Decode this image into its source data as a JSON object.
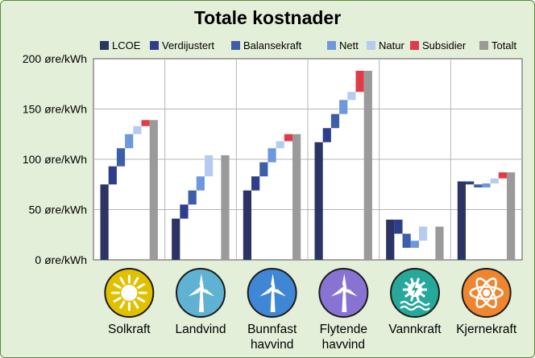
{
  "chart_data": {
    "type": "bar",
    "title": "Totale kostnader",
    "ylim": [
      0,
      200
    ],
    "y_ticks": [
      0,
      50,
      100,
      150,
      200
    ],
    "y_unit": "øre/kWh",
    "grid": true,
    "legend_position": "top-right",
    "legend": [
      {
        "name": "LCOE",
        "color": "#2b3464"
      },
      {
        "name": "Verdijustert",
        "color": "#2e3e8c"
      },
      {
        "name": "Balansekraft",
        "color": "#3d5ea8"
      },
      {
        "name": "Nett",
        "color": "#6d98dc"
      },
      {
        "name": "Natur",
        "color": "#b6cbef"
      },
      {
        "name": "Subsidier",
        "color": "#e23a48"
      },
      {
        "name": "Totalt",
        "color": "#9a9a9a"
      }
    ],
    "categories": [
      {
        "label": [
          "Solkraft"
        ],
        "icon": "sun-icon",
        "icon_color": "#e1c000",
        "values": {
          "LCOE": 75,
          "Verdijustert": 93,
          "Balansekraft": 111,
          "Nett": 125,
          "Natur": 133,
          "Subsidier": 139,
          "Totalt": 139
        }
      },
      {
        "label": [
          "Landvind"
        ],
        "icon": "wind-turbine-icon",
        "icon_color": "#5fb2d2",
        "values": {
          "LCOE": 41,
          "Verdijustert": 55,
          "Balansekraft": 69,
          "Nett": 83,
          "Natur": 104,
          "Subsidier": 104,
          "Totalt": 104
        }
      },
      {
        "label": [
          "Bunnfast",
          "havvind"
        ],
        "icon": "wind-turbine-icon",
        "icon_color": "#3f86d4",
        "values": {
          "LCOE": 69,
          "Verdijustert": 83,
          "Balansekraft": 97,
          "Nett": 111,
          "Natur": 118,
          "Subsidier": 125,
          "Totalt": 125
        }
      },
      {
        "label": [
          "Flytende",
          "havvind"
        ],
        "icon": "wind-turbine-icon",
        "icon_color": "#8873d2",
        "values": {
          "LCOE": 117,
          "Verdijustert": 131,
          "Balansekraft": 145,
          "Nett": 159,
          "Natur": 167,
          "Subsidier": 188,
          "Totalt": 188
        }
      },
      {
        "label": [
          "Vannkraft"
        ],
        "icon": "water-turbine-icon",
        "icon_color": "#26a89a",
        "values": {
          "LCOE": 40,
          "Verdijustert": 26,
          "Balansekraft": 12,
          "Nett": 19,
          "Natur": 33,
          "Subsidier": 33,
          "Totalt": 33
        }
      },
      {
        "label": [
          "Kjernekraft"
        ],
        "icon": "atom-icon",
        "icon_color": "#f08530",
        "values": {
          "LCOE": 78,
          "Verdijustert": 75,
          "Balansekraft": 72,
          "Nett": 76,
          "Natur": 81,
          "Subsidier": 87,
          "Totalt": 87
        }
      }
    ]
  }
}
